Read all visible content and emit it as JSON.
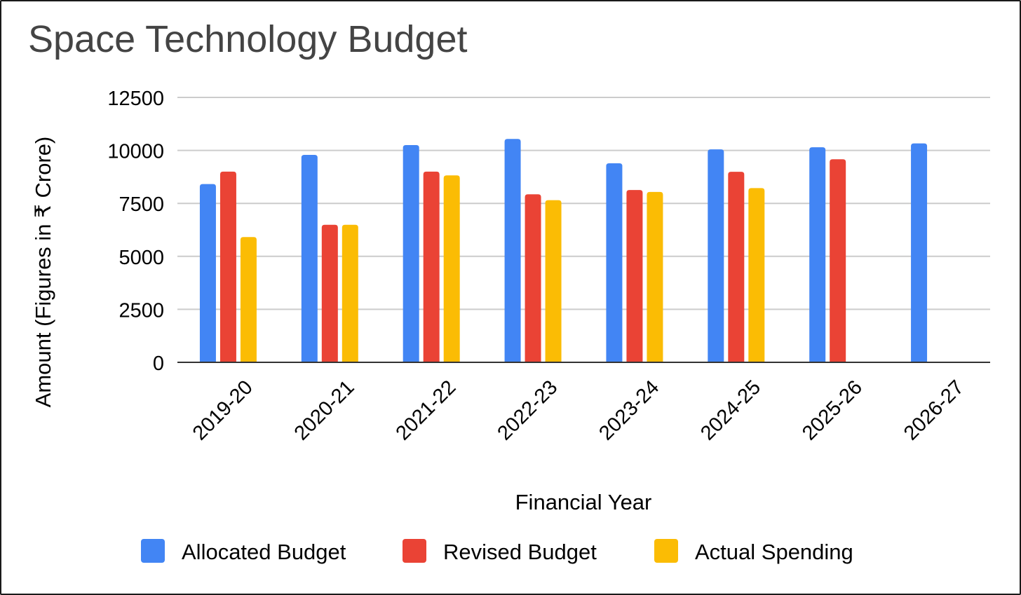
{
  "chart_data": {
    "type": "bar",
    "title": "Space Technology Budget",
    "xlabel": "Financial Year",
    "ylabel": "Amount (Figures in ₹ Crore)",
    "ylim": [
      0,
      12500
    ],
    "yticks": [
      "0",
      "2500",
      "5000",
      "7500",
      "10000",
      "12500"
    ],
    "grid": true,
    "legend_position": "bottom",
    "categories": [
      "2019-20",
      "2020-21",
      "2021-22",
      "2022-23",
      "2023-24",
      "2024-25",
      "2025-26",
      "2026-27"
    ],
    "series": [
      {
        "name": "Allocated Budget",
        "color": "#4285f4",
        "values": [
          8410,
          9790,
          10250,
          10540,
          9390,
          10050,
          10150,
          10330
        ]
      },
      {
        "name": "Revised Budget",
        "color": "#ea4335",
        "values": [
          9000,
          6490,
          9000,
          7930,
          8130,
          8990,
          9580,
          null
        ]
      },
      {
        "name": "Actual Spending",
        "color": "#fbbc04",
        "values": [
          5910,
          6490,
          8820,
          7650,
          8040,
          8220,
          null,
          null
        ]
      }
    ]
  }
}
